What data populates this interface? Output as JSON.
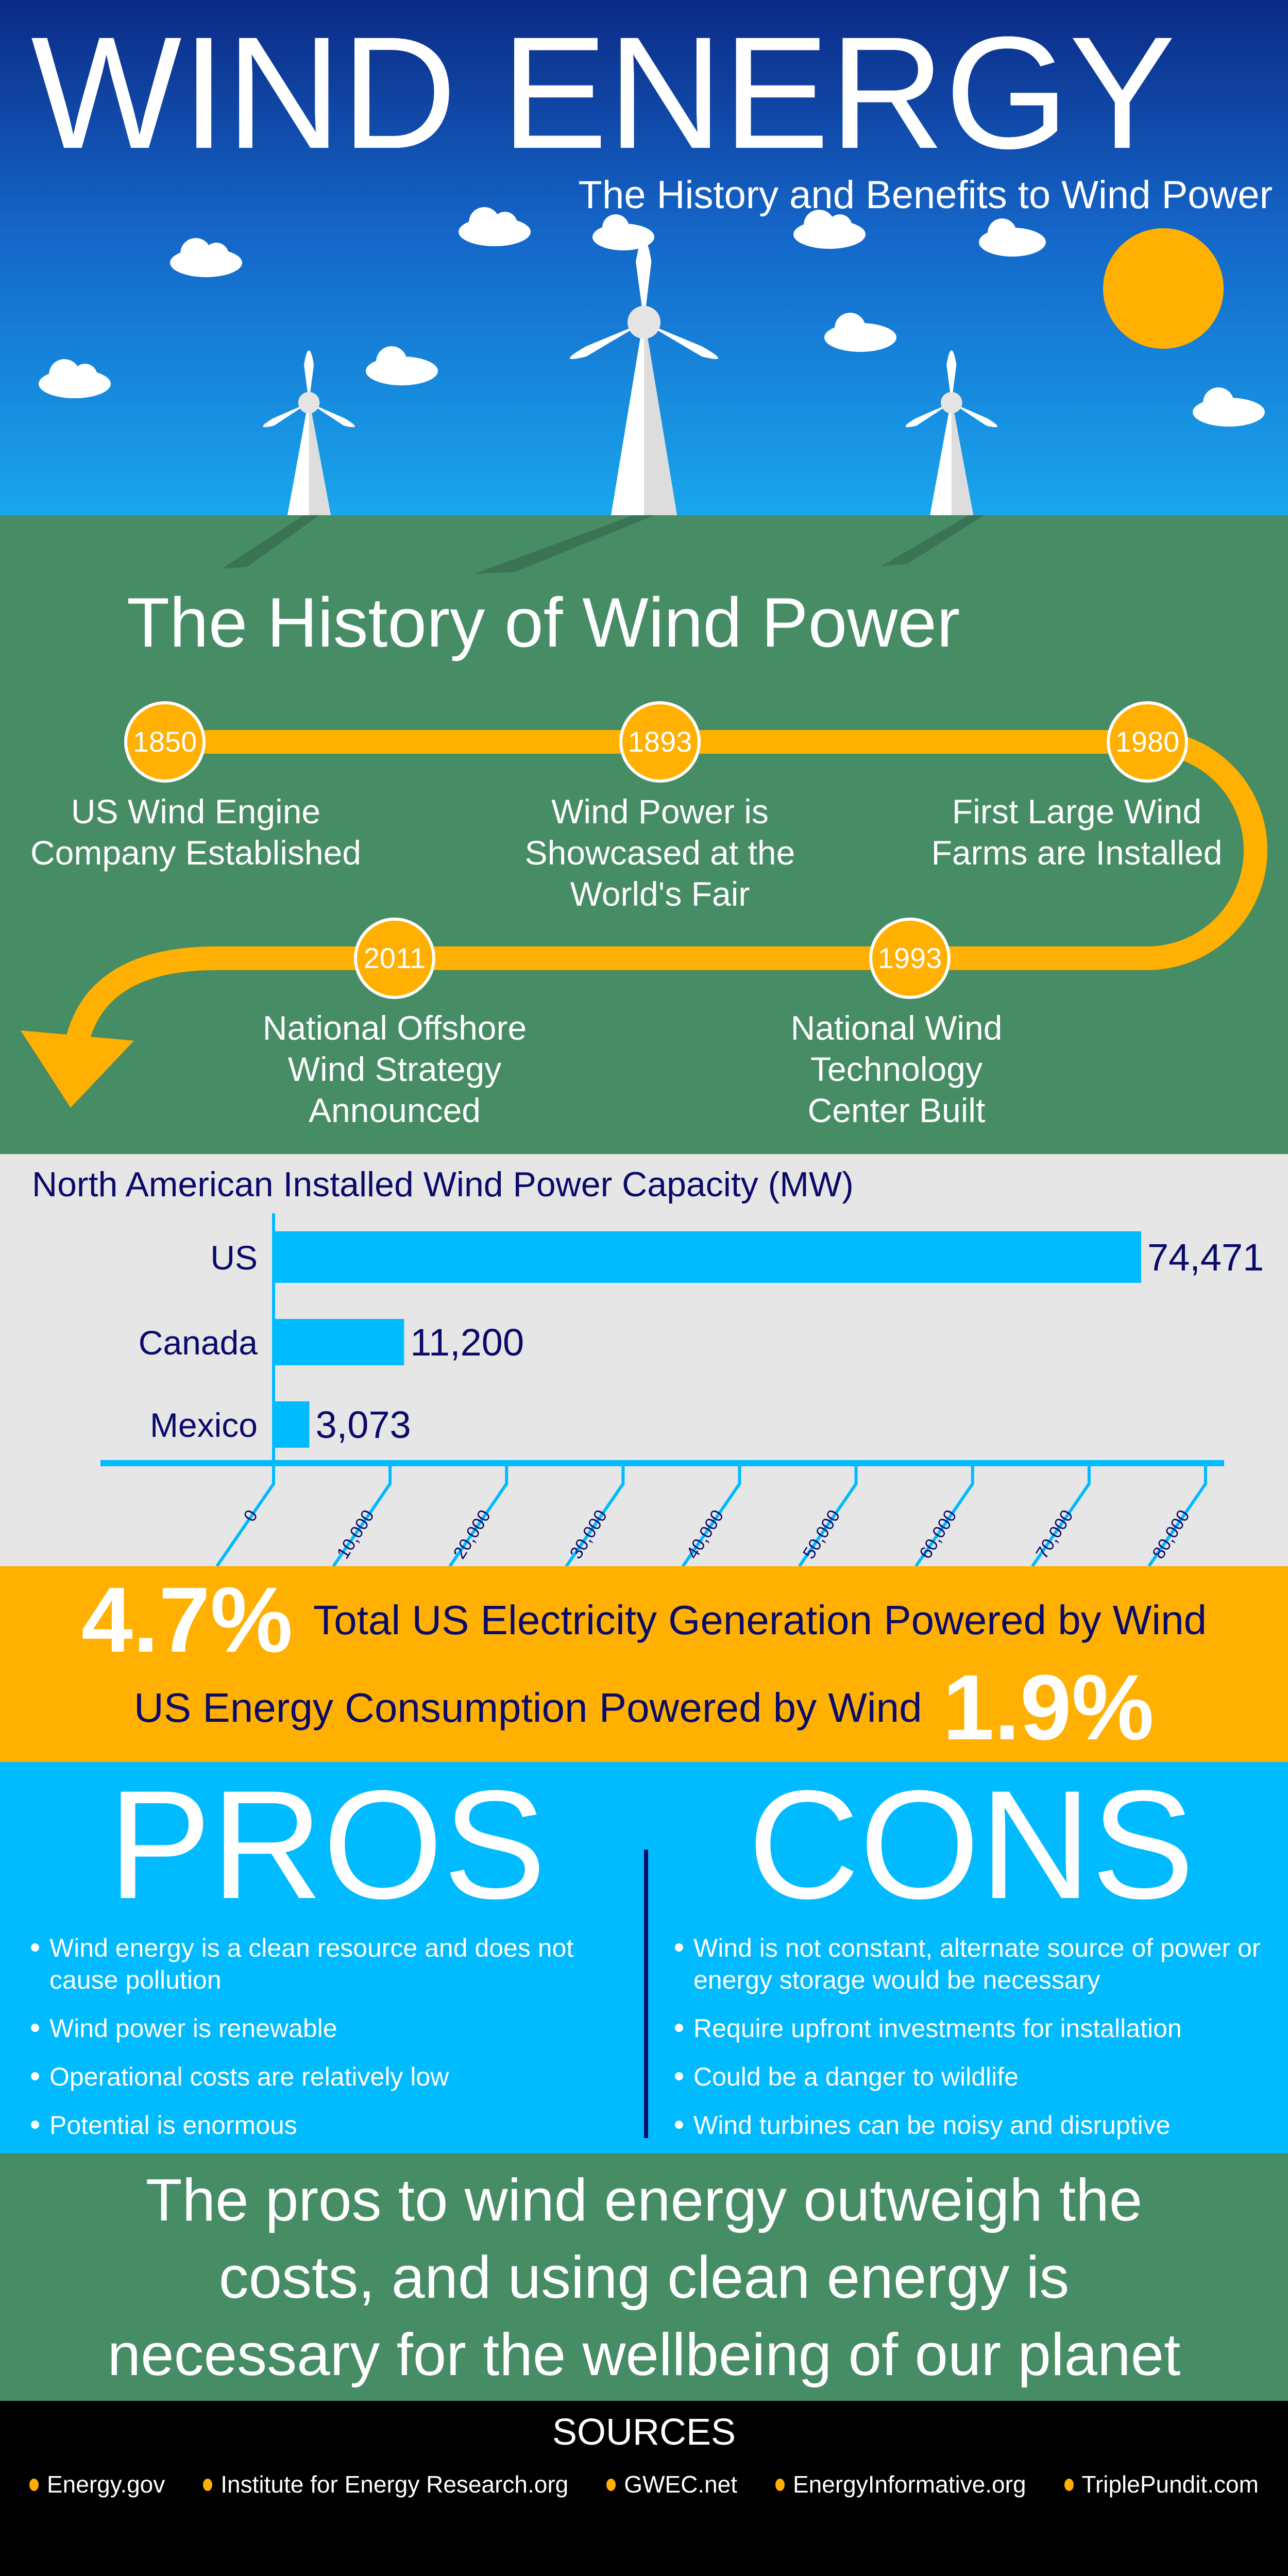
{
  "header": {
    "title": "WIND ENERGY",
    "subtitle": "The History and Benefits to Wind Power"
  },
  "history": {
    "title": "The History of Wind Power",
    "events": [
      {
        "year": "1850",
        "lines": [
          "US Wind Engine",
          "Company Established"
        ]
      },
      {
        "year": "1893",
        "lines": [
          "Wind Power is",
          "Showcased at the",
          "World's Fair"
        ]
      },
      {
        "year": "1980",
        "lines": [
          "First Large Wind",
          "Farms are Installed"
        ]
      },
      {
        "year": "1993",
        "lines": [
          "National Wind",
          "Technology",
          "Center Built"
        ]
      },
      {
        "year": "2011",
        "lines": [
          "National Offshore",
          "Wind Strategy",
          "Announced"
        ]
      }
    ]
  },
  "chart_data": {
    "type": "bar",
    "title": "North American Installed Wind Power Capacity (MW)",
    "categories": [
      "US",
      "Canada",
      "Mexico"
    ],
    "values": [
      74471,
      11200,
      3073
    ],
    "value_labels": [
      "74,471",
      "11,200",
      "3,073"
    ],
    "xlim": [
      0,
      80000
    ],
    "ticks": [
      "0",
      "10,000",
      "20,000",
      "30,000",
      "40,000",
      "50,000",
      "60,000",
      "70,000",
      "80,000"
    ],
    "tick_values": [
      0,
      10000,
      20000,
      30000,
      40000,
      50000,
      60000,
      70000,
      80000
    ],
    "color": "#00bbff"
  },
  "stats": {
    "stat1_value": "4.7%",
    "stat1_label": "Total US Electricity Generation Powered by Wind",
    "stat2_value": "1.9%",
    "stat2_label": "US Energy Consumption Powered by Wind"
  },
  "pros": {
    "title": "PROS",
    "items": [
      "Wind energy is a clean resource and does not cause pollution",
      "Wind power is renewable",
      "Operational costs are relatively low",
      "Potential is enormous"
    ]
  },
  "cons": {
    "title": "CONS",
    "items": [
      "Wind is not constant, alternate source of power or energy storage would be necessary",
      "Require upfront investments for installation",
      "Could be a danger to wildlife",
      "Wind turbines can be noisy and disruptive"
    ]
  },
  "conclusion": {
    "lines": [
      "The pros to wind energy outweigh the",
      "costs, and using clean energy is",
      "necessary for the wellbeing of our planet"
    ]
  },
  "sources": {
    "title": "SOURCES",
    "items": [
      "Energy.gov",
      "Institute for Energy Research.org",
      "GWEC.net",
      "EnergyInformative.org",
      "TriplePundit.com"
    ]
  },
  "colors": {
    "orange": "#ffb000",
    "cyan": "#00bbff",
    "green": "#468c64",
    "navy": "#0a0a6a"
  }
}
